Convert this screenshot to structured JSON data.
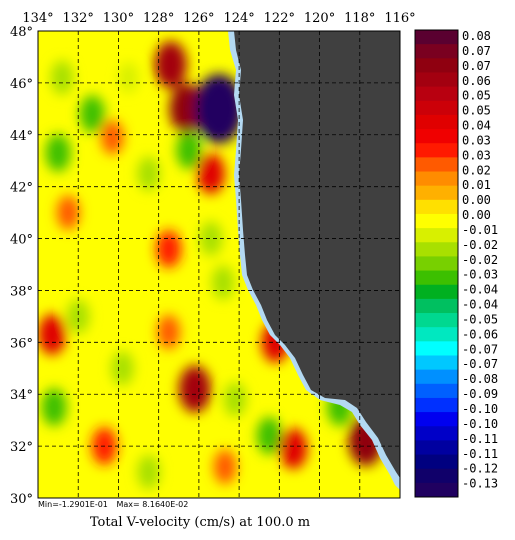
{
  "title": "Total V-velocity (cm/s) at 100.0 m",
  "stats": {
    "min": "Min=-1.2901E-01",
    "max": "Max= 8.1640E-02"
  },
  "lon_labels": [
    "134°",
    "132°",
    "130°",
    "128°",
    "126°",
    "124°",
    "122°",
    "120°",
    "118°",
    "116°"
  ],
  "lat_labels": [
    "48°",
    "46°",
    "44°",
    "42°",
    "40°",
    "38°",
    "36°",
    "34°",
    "32°",
    "30°"
  ],
  "colorbar": {
    "labels": [
      "0.08",
      "0.07",
      "0.07",
      "0.06",
      "0.05",
      "0.05",
      "0.04",
      "0.03",
      "0.03",
      "0.02",
      "0.01",
      "0.00",
      "0.00",
      "-0.01",
      "-0.02",
      "-0.02",
      "-0.03",
      "-0.04",
      "-0.04",
      "-0.05",
      "-0.06",
      "-0.07",
      "-0.07",
      "-0.08",
      "-0.09",
      "-0.10",
      "-0.10",
      "-0.11",
      "-0.11",
      "-0.12",
      "-0.13"
    ],
    "colors": [
      "#5a0030",
      "#7a0020",
      "#8f0010",
      "#a30010",
      "#b80010",
      "#cc0008",
      "#e00000",
      "#f00000",
      "#ff1a00",
      "#ff5a00",
      "#ff8c00",
      "#ffb000",
      "#ffe000",
      "#ffff00",
      "#d8f000",
      "#a8e000",
      "#78d000",
      "#3cc000",
      "#00b020",
      "#00c060",
      "#00d890",
      "#00e8c0",
      "#00ffff",
      "#00c8ff",
      "#0090ff",
      "#0060ff",
      "#0030ff",
      "#0000f0",
      "#0000c8",
      "#0000a0",
      "#000080",
      "#10006a",
      "#200060"
    ]
  },
  "colors": {
    "land": "#404040",
    "coast": "#b3d9f2",
    "field_base": "#ffff00"
  },
  "chart_data": {
    "type": "heatmap",
    "title": "Total V-velocity (cm/s) at 100.0 m",
    "x_range": [
      -134,
      -116
    ],
    "y_range": [
      30,
      48
    ],
    "value_range": [
      -0.13,
      0.08
    ],
    "grid": true,
    "features": [
      {
        "lon": -127.4,
        "lat": 46.7,
        "value": 0.06
      },
      {
        "lon": -126.6,
        "lat": 45.0,
        "value": 0.07
      },
      {
        "lon": -125.0,
        "lat": 45.0,
        "value": -0.13
      },
      {
        "lon": -131.3,
        "lat": 44.8,
        "value": -0.03
      },
      {
        "lon": -133.0,
        "lat": 43.3,
        "value": -0.03
      },
      {
        "lon": -130.3,
        "lat": 43.9,
        "value": 0.02
      },
      {
        "lon": -126.5,
        "lat": 43.4,
        "value": -0.03
      },
      {
        "lon": -125.4,
        "lat": 42.5,
        "value": 0.04
      },
      {
        "lon": -128.5,
        "lat": 42.5,
        "value": -0.02
      },
      {
        "lon": -132.5,
        "lat": 41.0,
        "value": 0.02
      },
      {
        "lon": -127.5,
        "lat": 39.6,
        "value": 0.03
      },
      {
        "lon": -132.0,
        "lat": 37.0,
        "value": -0.02
      },
      {
        "lon": -133.3,
        "lat": 36.3,
        "value": 0.04
      },
      {
        "lon": -129.8,
        "lat": 35.0,
        "value": -0.02
      },
      {
        "lon": -126.2,
        "lat": 34.2,
        "value": 0.06
      },
      {
        "lon": -124.2,
        "lat": 33.8,
        "value": -0.02
      },
      {
        "lon": -122.5,
        "lat": 32.4,
        "value": -0.03
      },
      {
        "lon": -121.3,
        "lat": 31.9,
        "value": 0.04
      },
      {
        "lon": -130.7,
        "lat": 32.0,
        "value": 0.03
      },
      {
        "lon": -119.0,
        "lat": 33.5,
        "value": -0.03
      },
      {
        "lon": -117.7,
        "lat": 32.2,
        "value": 0.07
      },
      {
        "lon": -122.2,
        "lat": 36.0,
        "value": 0.04
      },
      {
        "lon": -124.8,
        "lat": 38.3,
        "value": -0.02
      },
      {
        "lon": -127.5,
        "lat": 36.4,
        "value": 0.02
      },
      {
        "lon": -125.4,
        "lat": 40.0,
        "value": -0.02
      },
      {
        "lon": -132.8,
        "lat": 46.2,
        "value": -0.02
      },
      {
        "lon": -129.5,
        "lat": 46.2,
        "value": -0.01
      },
      {
        "lon": -133.2,
        "lat": 33.5,
        "value": -0.03
      },
      {
        "lon": -128.5,
        "lat": 31.0,
        "value": -0.02
      },
      {
        "lon": -124.7,
        "lat": 31.2,
        "value": 0.02
      }
    ]
  }
}
